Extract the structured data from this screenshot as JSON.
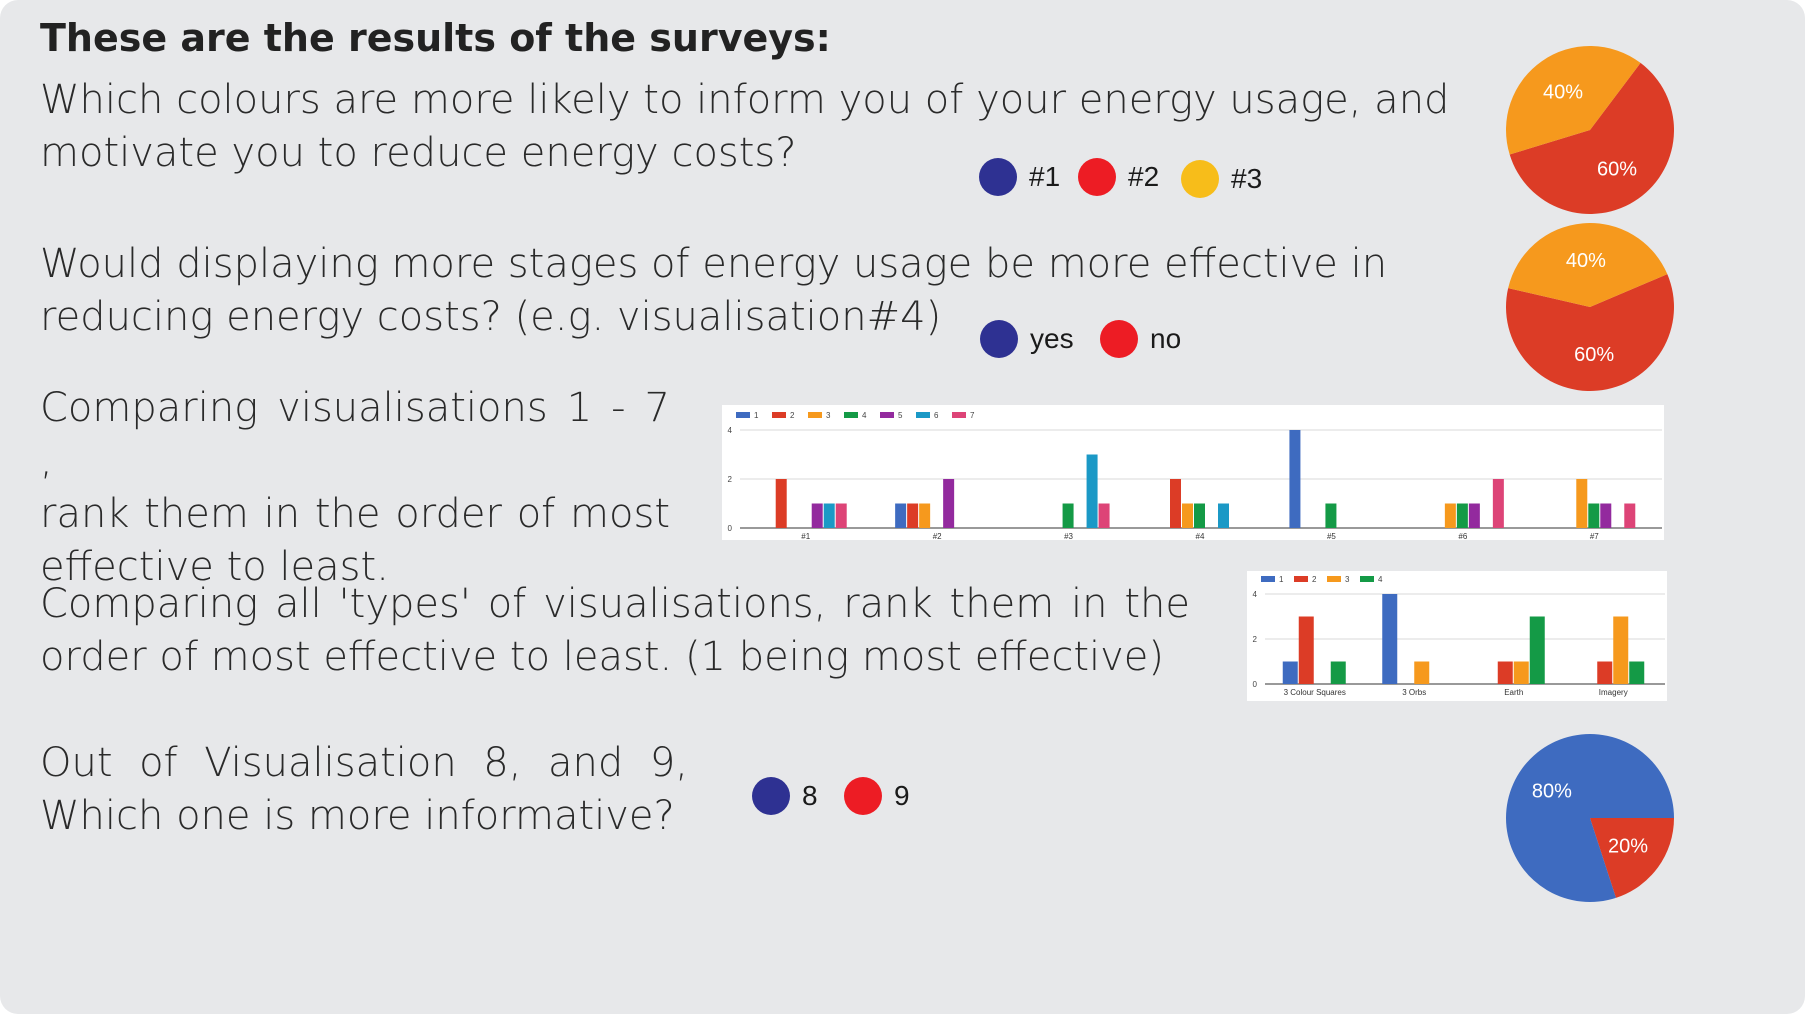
{
  "title": "These are the results of the surveys:",
  "questions": {
    "q1": "Which colours are more likely to inform you of your energy usage, and motivate you to reduce energy costs?",
    "q2": "Would displaying more stages of energy usage be more effective in reducing energy costs? (e.g. visualisation#4)",
    "q3_lines": [
      "Comparing visualisations 1 - 7 ,",
      "rank them in the order of most",
      "effective to least."
    ],
    "q4_lines": [
      "Comparing all 'types' of visualisations, rank them in the",
      "order of most effective to least. (1 being most effective)"
    ],
    "q5_lines": [
      "Out of Visualisation 8, and 9,",
      "Which one is more informative?"
    ]
  },
  "legends": {
    "q1": [
      {
        "label": "#1",
        "color": "#2e3192"
      },
      {
        "label": "#2",
        "color": "#ed1c24"
      },
      {
        "label": "#3",
        "color": "#f7bd1a"
      }
    ],
    "q2": [
      {
        "label": "yes",
        "color": "#2e3192"
      },
      {
        "label": "no",
        "color": "#ed1c24"
      }
    ],
    "q5": [
      {
        "label": "8",
        "color": "#2e3192"
      },
      {
        "label": "9",
        "color": "#ed1c24"
      }
    ]
  },
  "chart_data": [
    {
      "id": "pie1",
      "type": "pie",
      "slices": [
        {
          "label": "60%",
          "value": 60,
          "color": "#dc3c26"
        },
        {
          "label": "40%",
          "value": 40,
          "color": "#f6991d"
        }
      ]
    },
    {
      "id": "pie2",
      "type": "pie",
      "slices": [
        {
          "label": "60%",
          "value": 60,
          "color": "#dc3c26"
        },
        {
          "label": "40%",
          "value": 40,
          "color": "#f6991d"
        }
      ]
    },
    {
      "id": "bar1",
      "type": "bar",
      "categories": [
        "#1",
        "#2",
        "#3",
        "#4",
        "#5",
        "#6",
        "#7"
      ],
      "series": [
        {
          "name": "1",
          "color": "#3e6bc0",
          "values": [
            0,
            1,
            0,
            0,
            4,
            0,
            0
          ]
        },
        {
          "name": "2",
          "color": "#dc3c26",
          "values": [
            2,
            1,
            0,
            2,
            0,
            0,
            0
          ]
        },
        {
          "name": "3",
          "color": "#f6991d",
          "values": [
            0,
            1,
            0,
            1,
            0,
            1,
            2
          ]
        },
        {
          "name": "4",
          "color": "#149a46",
          "values": [
            0,
            0,
            1,
            1,
            1,
            1,
            1
          ]
        },
        {
          "name": "5",
          "color": "#932a9e",
          "values": [
            1,
            2,
            0,
            0,
            0,
            1,
            1
          ]
        },
        {
          "name": "6",
          "color": "#1b99c6",
          "values": [
            1,
            0,
            3,
            1,
            0,
            0,
            0
          ]
        },
        {
          "name": "7",
          "color": "#dd4477",
          "values": [
            1,
            0,
            1,
            0,
            0,
            2,
            1
          ]
        }
      ],
      "yticks": [
        "0",
        "2",
        "4"
      ],
      "ylim": [
        0,
        4
      ]
    },
    {
      "id": "bar2",
      "type": "bar",
      "categories": [
        "3 Colour Squares",
        "3 Orbs",
        "Earth",
        "Imagery"
      ],
      "series": [
        {
          "name": "1",
          "color": "#3e6bc0",
          "values": [
            1,
            4,
            0,
            0
          ]
        },
        {
          "name": "2",
          "color": "#dc3c26",
          "values": [
            3,
            0,
            1,
            1
          ]
        },
        {
          "name": "3",
          "color": "#f6991d",
          "values": [
            0,
            1,
            1,
            3
          ]
        },
        {
          "name": "4",
          "color": "#149a46",
          "values": [
            1,
            0,
            3,
            1
          ]
        }
      ],
      "yticks": [
        "0",
        "2",
        "4"
      ],
      "ylim": [
        0,
        4
      ]
    },
    {
      "id": "pie3",
      "type": "pie",
      "slices": [
        {
          "label": "20%",
          "value": 20,
          "color": "#dc3c26"
        },
        {
          "label": "80%",
          "value": 80,
          "color": "#3e6bc0"
        }
      ]
    }
  ]
}
